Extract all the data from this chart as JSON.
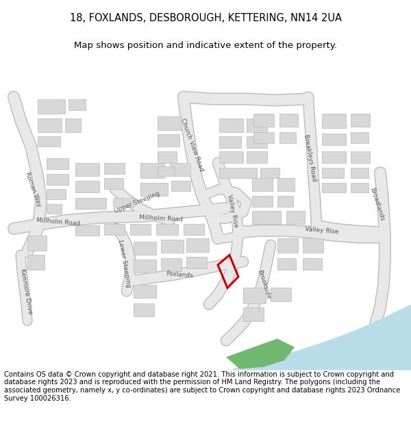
{
  "title_line1": "18, FOXLANDS, DESBOROUGH, KETTERING, NN14 2UA",
  "title_line2": "Map shows position and indicative extent of the property.",
  "footer_text": "Contains OS data © Crown copyright and database right 2021. This information is subject to Crown copyright and database rights 2023 and is reproduced with the permission of HM Land Registry. The polygons (including the associated geometry, namely x, y co-ordinates) are subject to Crown copyright and database rights 2023 Ordnance Survey 100026316.",
  "bg_color": "#ffffff",
  "map_bg": "#ffffff",
  "road_color": "#e8e8e8",
  "road_stroke": "#cccccc",
  "building_color": "#d8d8d8",
  "building_stroke": "#c0c0c0",
  "highlight_stroke": "#cc0000",
  "water_color": "#a8d4e8",
  "green_color": "#6db96d",
  "title_fontsize": 10.5,
  "subtitle_fontsize": 9.5,
  "footer_fontsize": 7.2,
  "label_fontsize": 6.5,
  "label_color": "#555555"
}
